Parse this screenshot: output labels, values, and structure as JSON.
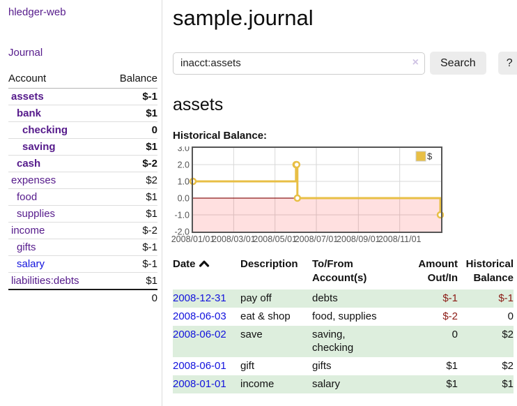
{
  "app": {
    "title": "hledger-web"
  },
  "colors": {
    "link_visited_purple": "#551a8b",
    "link_new_blue": "#1212dd",
    "negative_strong": "#8b1515",
    "negative_faded": "#bb7b7b",
    "row_stripe_green": "#ddeedd",
    "button_gray": "#ececec",
    "chart_line_gold": "#e8bf45",
    "chart_negative_fill": "rgba(255,0,0,0.12)",
    "chart_zero_line": "#8b1a1a",
    "chart_grid": "#d8d8d8",
    "chart_border": "#555555"
  },
  "sidebar": {
    "nav_journal": "Journal",
    "table": {
      "headers": {
        "account": "Account",
        "balance": "Balance"
      },
      "rows": [
        {
          "account": "assets",
          "balance": "$-1",
          "depth": 1,
          "bold": true,
          "neg": "strong",
          "link": "visited"
        },
        {
          "account": "bank",
          "balance": "$1",
          "depth": 2,
          "bold": true,
          "neg": null,
          "link": "visited"
        },
        {
          "account": "checking",
          "balance": "0",
          "depth": 3,
          "bold": true,
          "neg": null,
          "link": "visited"
        },
        {
          "account": "saving",
          "balance": "$1",
          "depth": 3,
          "bold": true,
          "neg": null,
          "link": "visited"
        },
        {
          "account": "cash",
          "balance": "$-2",
          "depth": 2,
          "bold": true,
          "neg": "strong",
          "link": "visited"
        },
        {
          "account": "expenses",
          "balance": "$2",
          "depth": 1,
          "bold": false,
          "neg": null,
          "link": "visited"
        },
        {
          "account": "food",
          "balance": "$1",
          "depth": 2,
          "bold": false,
          "neg": null,
          "link": "visited"
        },
        {
          "account": "supplies",
          "balance": "$1",
          "depth": 2,
          "bold": false,
          "neg": null,
          "link": "visited"
        },
        {
          "account": "income",
          "balance": "$-2",
          "depth": 1,
          "bold": false,
          "neg": "faded",
          "link": "visited"
        },
        {
          "account": "gifts",
          "balance": "$-1",
          "depth": 2,
          "bold": false,
          "neg": "faded",
          "link": "visited"
        },
        {
          "account": "salary",
          "balance": "$-1",
          "depth": 2,
          "bold": false,
          "neg": "faded",
          "link": "new"
        },
        {
          "account": "liabilities:debts",
          "balance": "$1",
          "depth": 1,
          "bold": false,
          "neg": null,
          "link": "visited"
        }
      ],
      "total": "0"
    }
  },
  "main": {
    "title": "sample.journal",
    "search": {
      "value": "inacct:assets",
      "clear_icon": "×",
      "button_label": "Search",
      "help_label": "?"
    },
    "register_title": "assets",
    "chart_label": "Historical Balance:",
    "table": {
      "headers": {
        "date": "Date",
        "description": "Description",
        "tofrom": "To/From Account(s)",
        "amount": "Amount Out/In",
        "balance": "Historical Balance"
      },
      "rows": [
        {
          "date": "2008-12-31",
          "description": "pay off",
          "tofrom": "debts",
          "amount": "$-1",
          "balance": "$-1",
          "amount_neg": true,
          "balance_neg": true,
          "shade": true
        },
        {
          "date": "2008-06-03",
          "description": "eat & shop",
          "tofrom": "food, supplies",
          "amount": "$-2",
          "balance": "0",
          "amount_neg": true,
          "balance_neg": false,
          "shade": false
        },
        {
          "date": "2008-06-02",
          "description": "save",
          "tofrom": "saving, checking",
          "amount": "0",
          "balance": "$2",
          "amount_neg": false,
          "balance_neg": false,
          "shade": true
        },
        {
          "date": "2008-06-01",
          "description": "gift",
          "tofrom": "gifts",
          "amount": "$1",
          "balance": "$2",
          "amount_neg": false,
          "balance_neg": false,
          "shade": false
        },
        {
          "date": "2008-01-01",
          "description": "income",
          "tofrom": "salary",
          "amount": "$1",
          "balance": "$1",
          "amount_neg": false,
          "balance_neg": false,
          "shade": true
        }
      ]
    }
  },
  "chart_data": {
    "type": "line",
    "style": "step",
    "title": "Historical Balance:",
    "legend": {
      "position": "top-right"
    },
    "series": [
      {
        "name": "$",
        "color": "#e8bf45",
        "points": [
          [
            "2008-01-01",
            1
          ],
          [
            "2008-06-01",
            2
          ],
          [
            "2008-06-02",
            2
          ],
          [
            "2008-06-03",
            0
          ],
          [
            "2008-12-31",
            -1
          ]
        ]
      }
    ],
    "ylim": [
      -2,
      3
    ],
    "y_ticks": [
      3.0,
      2.0,
      1.0,
      0.0,
      -1.0,
      -2.0
    ],
    "xlim": [
      "2008-01-01",
      "2009-01-01"
    ],
    "x_tick_dates": [
      "2008-01-01",
      "2008-03-01",
      "2008-05-01",
      "2008-07-01",
      "2008-09-01",
      "2008-11-01"
    ],
    "x_tick_labels": [
      "2008/01/01",
      "2008/03/01",
      "2008/05/01",
      "2008/07/01",
      "2008/09/01",
      "2008/11/01"
    ],
    "grid": true,
    "negative_region_shaded": true
  }
}
